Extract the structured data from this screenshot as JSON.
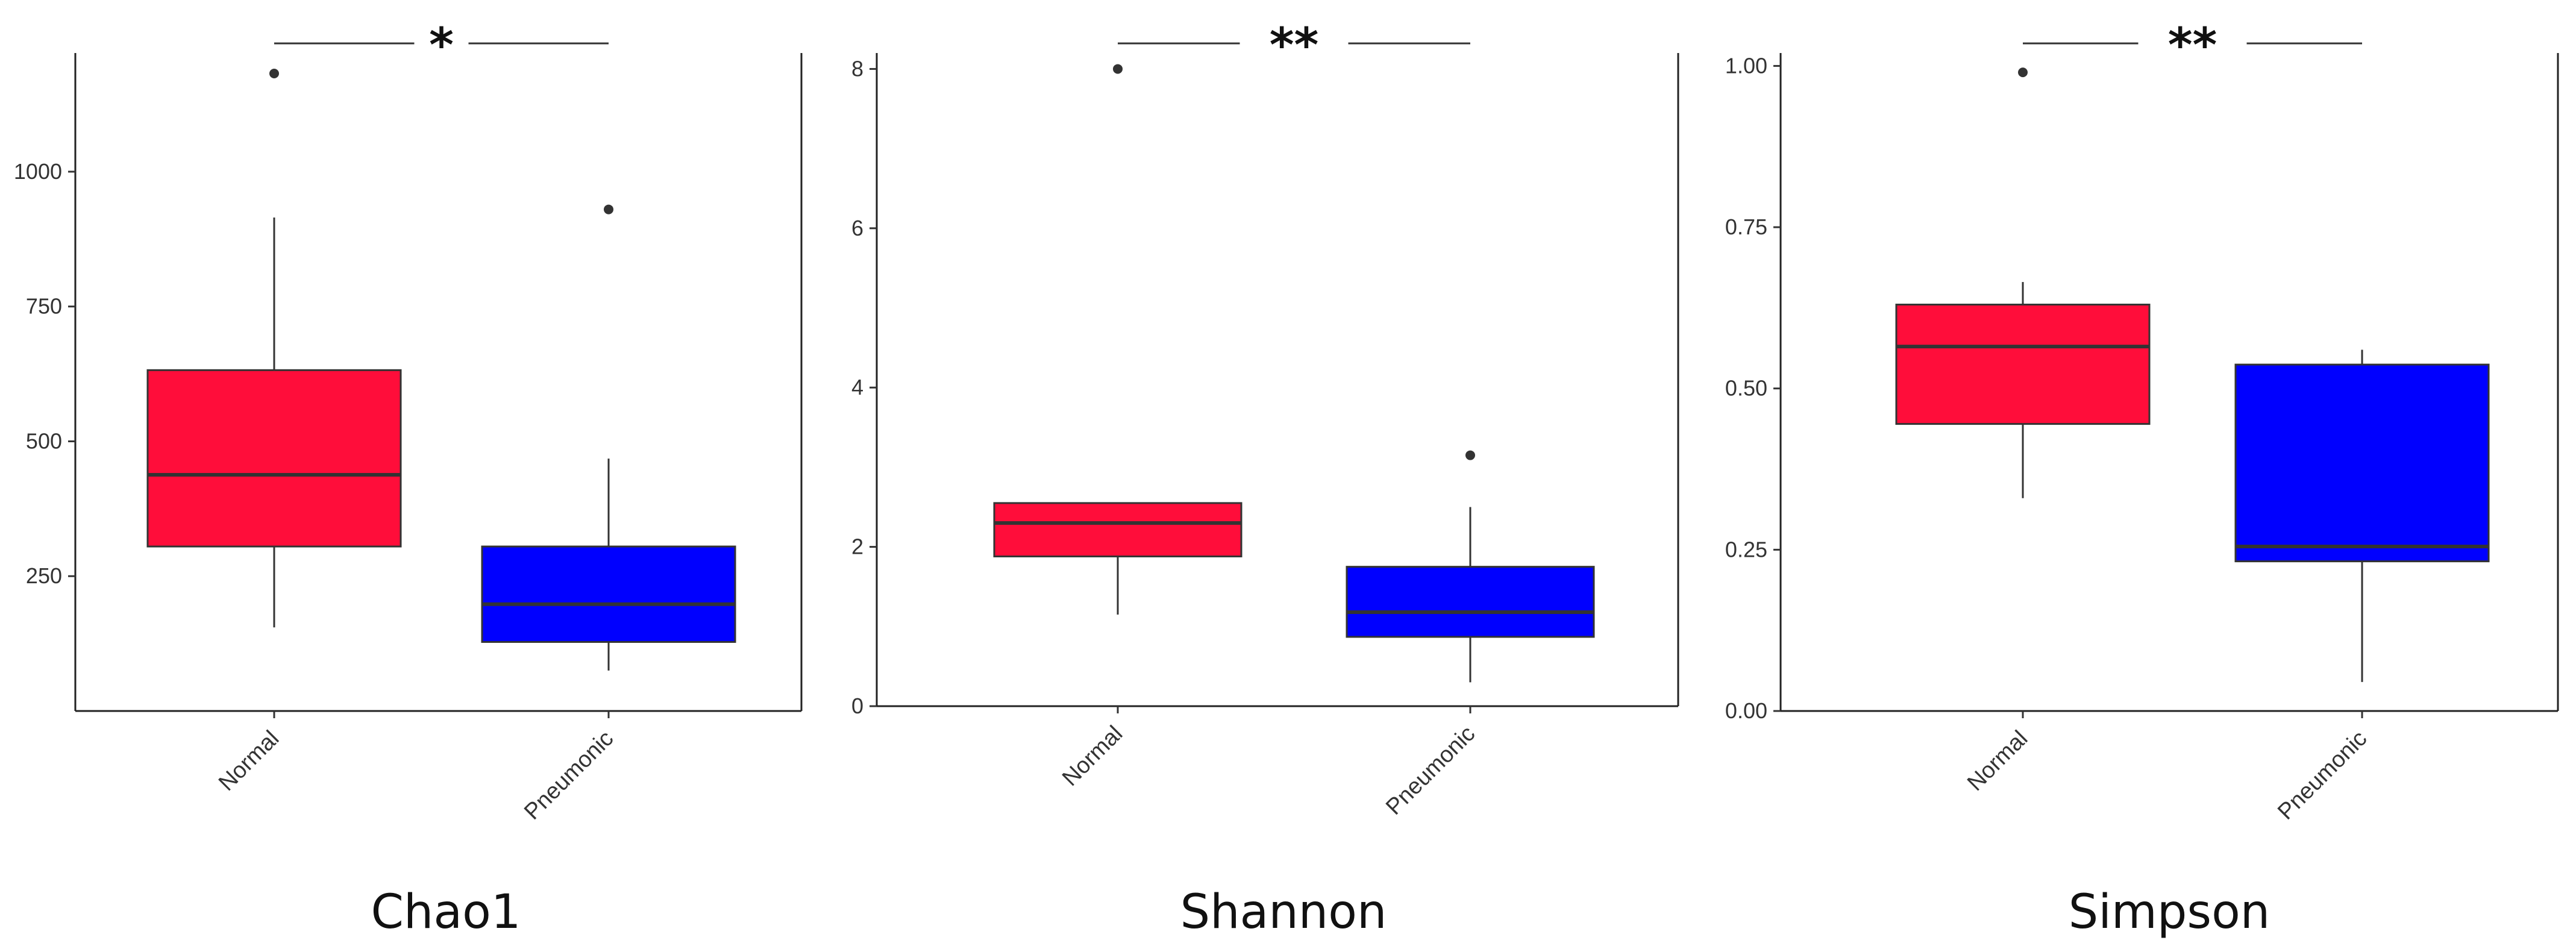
{
  "chart_data": [
    {
      "type": "box",
      "title": "Chao1",
      "categories": [
        "Normal",
        "Pneumonic"
      ],
      "ylim": [
        0,
        1220
      ],
      "yticks": [
        250,
        500,
        750,
        1000
      ],
      "significance": "*",
      "boxes": [
        {
          "category": "Normal",
          "color": "#ff0d3a",
          "whisker_low": 155,
          "q1": 305,
          "median": 438,
          "q3": 632,
          "whisker_high": 915,
          "outliers": [
            1182
          ]
        },
        {
          "category": "Pneumonic",
          "color": "#0000ff",
          "whisker_low": 75,
          "q1": 128,
          "median": 198,
          "q3": 305,
          "whisker_high": 468,
          "outliers": [
            930
          ]
        }
      ]
    },
    {
      "type": "box",
      "title": "Shannon",
      "categories": [
        "Normal",
        "Pneumonic"
      ],
      "ylim": [
        0,
        8.2
      ],
      "yticks": [
        0,
        2,
        4,
        6,
        8
      ],
      "significance": "**",
      "boxes": [
        {
          "category": "Normal",
          "color": "#ff0d3a",
          "whisker_low": 1.15,
          "q1": 1.88,
          "median": 2.3,
          "q3": 2.55,
          "whisker_high": 2.55,
          "outliers": [
            8.0
          ]
        },
        {
          "category": "Pneumonic",
          "color": "#0000ff",
          "whisker_low": 0.3,
          "q1": 0.87,
          "median": 1.18,
          "q3": 1.75,
          "whisker_high": 2.5,
          "outliers": [
            3.15
          ]
        }
      ]
    },
    {
      "type": "box",
      "title": "Simpson",
      "categories": [
        "Normal",
        "Pneumonic"
      ],
      "ylim": [
        0,
        1.02
      ],
      "yticks": [
        0.0,
        0.25,
        0.5,
        0.75,
        1.0
      ],
      "ytick_labels": [
        "0.00",
        "0.25",
        "0.50",
        "0.75",
        "1.00"
      ],
      "significance": "**",
      "boxes": [
        {
          "category": "Normal",
          "color": "#ff0d3a",
          "whisker_low": 0.33,
          "q1": 0.445,
          "median": 0.565,
          "q3": 0.63,
          "whisker_high": 0.665,
          "outliers": [
            0.99
          ]
        },
        {
          "category": "Pneumonic",
          "color": "#0000ff",
          "whisker_low": 0.045,
          "q1": 0.232,
          "median": 0.255,
          "q3": 0.537,
          "whisker_high": 0.56,
          "outliers": []
        }
      ]
    }
  ]
}
